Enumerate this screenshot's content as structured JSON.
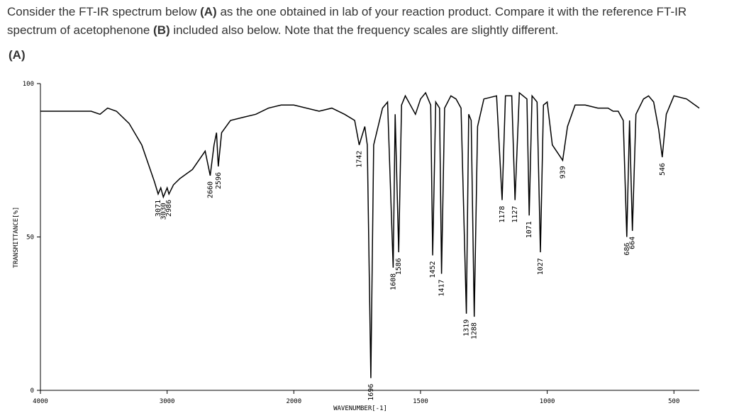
{
  "question": [
    "Consider the FT-IR spectrum below ",
    "(A)",
    " as the one obtained in lab of your reaction product. Compare it with the reference FT-IR",
    "spectrum of acetophenone ",
    "(B)",
    " included also below. Note that the frequency scales are slightly different."
  ],
  "label": "(A)",
  "chart_data": {
    "type": "line",
    "x_label": "WAVENUMBER[-1]",
    "y_label": "TRANSMITTANCE[%]",
    "xlim": [
      4000,
      400
    ],
    "ylim": [
      0,
      100
    ],
    "xticks": [
      4000,
      3000,
      2000,
      1500,
      1000,
      500
    ],
    "yticks": [
      0,
      50,
      100
    ],
    "color": "#000000",
    "x": [
      4000,
      3600,
      3530,
      3470,
      3400,
      3300,
      3200,
      3100,
      3071,
      3050,
      3030,
      3000,
      2986,
      2950,
      2900,
      2800,
      2700,
      2660,
      2630,
      2610,
      2596,
      2570,
      2500,
      2400,
      2300,
      2200,
      2100,
      2000,
      1900,
      1850,
      1800,
      1760,
      1742,
      1720,
      1710,
      1696,
      1685,
      1650,
      1630,
      1608,
      1600,
      1586,
      1575,
      1560,
      1520,
      1500,
      1480,
      1460,
      1452,
      1440,
      1425,
      1417,
      1405,
      1380,
      1360,
      1340,
      1319,
      1310,
      1300,
      1288,
      1275,
      1250,
      1200,
      1178,
      1165,
      1140,
      1127,
      1110,
      1080,
      1071,
      1060,
      1040,
      1027,
      1015,
      1000,
      980,
      939,
      920,
      890,
      850,
      800,
      760,
      740,
      720,
      700,
      686,
      675,
      664,
      650,
      620,
      600,
      580,
      560,
      546,
      530,
      500,
      450,
      400
    ],
    "values": [
      91,
      91,
      90,
      92,
      91,
      87,
      80,
      68,
      64,
      66,
      63,
      66,
      64,
      67,
      69,
      72,
      78,
      70,
      80,
      84,
      73,
      84,
      88,
      89,
      90,
      92,
      93,
      93,
      91,
      92,
      90,
      88,
      80,
      86,
      80,
      4,
      80,
      92,
      94,
      40,
      90,
      45,
      93,
      96,
      90,
      95,
      97,
      93,
      44,
      94,
      92,
      38,
      92,
      96,
      95,
      92,
      25,
      90,
      88,
      24,
      86,
      95,
      96,
      62,
      96,
      96,
      62,
      97,
      95,
      57,
      96,
      94,
      45,
      93,
      94,
      80,
      75,
      86,
      93,
      93,
      92,
      92,
      91,
      91,
      88,
      50,
      88,
      52,
      90,
      95,
      96,
      94,
      85,
      76,
      90,
      96,
      95,
      92
    ],
    "annotations": [
      3071,
      3030,
      2986,
      2660,
      2596,
      1742,
      1696,
      1608,
      1586,
      1452,
      1417,
      1319,
      1288,
      1178,
      1127,
      1071,
      1027,
      939,
      686,
      664,
      546
    ]
  }
}
